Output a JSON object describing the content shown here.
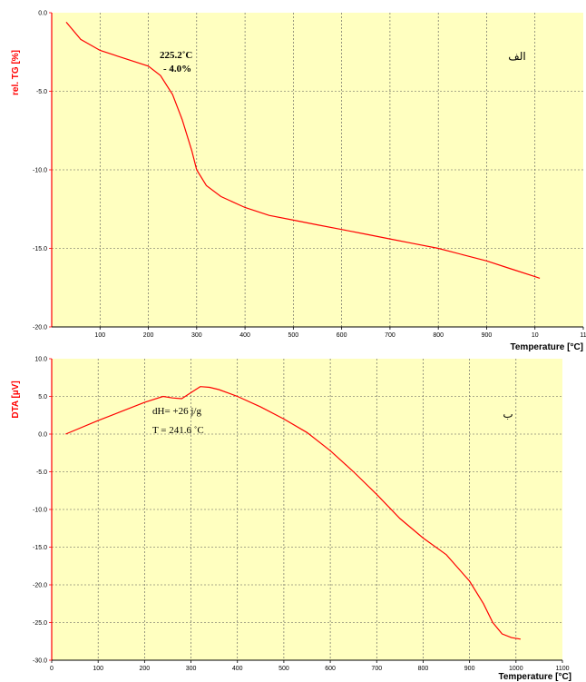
{
  "chart_data": [
    {
      "type": "line",
      "panel_label": "الف",
      "ylabel": "rel. TG  [%]",
      "xlabel": "Temperature  [°C]",
      "xlim": [
        0,
        1100
      ],
      "ylim": [
        -20,
        0
      ],
      "x_tick_labels": [
        "100",
        "200",
        "300",
        "400",
        "500",
        "600",
        "700",
        "800",
        "900",
        "10",
        "11"
      ],
      "y_tick_labels": [
        "0.0",
        "-5.0",
        "-10.0",
        "-15.0",
        "-20.0"
      ],
      "grid": true,
      "line_color": "#ff0000",
      "annotations": [
        "225.2˚C",
        "- 4.0%"
      ],
      "series": [
        {
          "x": [
            30,
            60,
            100,
            150,
            200,
            225,
            250,
            270,
            290,
            300,
            320,
            350,
            400,
            450,
            500,
            550,
            600,
            650,
            700,
            750,
            800,
            850,
            900,
            950,
            1000,
            1010
          ],
          "y": [
            -0.6,
            -1.7,
            -2.4,
            -2.9,
            -3.4,
            -4.0,
            -5.2,
            -6.8,
            -8.8,
            -10.0,
            -11.0,
            -11.7,
            -12.4,
            -12.9,
            -13.2,
            -13.5,
            -13.8,
            -14.1,
            -14.4,
            -14.7,
            -15.0,
            -15.4,
            -15.8,
            -16.3,
            -16.8,
            -16.9
          ]
        }
      ]
    },
    {
      "type": "line",
      "panel_label": "ب",
      "ylabel": "DTA  [µV]",
      "xlabel": "Temperature  [°C]",
      "xlim": [
        0,
        1100
      ],
      "ylim": [
        -30,
        10
      ],
      "x_tick_labels": [
        "0",
        "100",
        "200",
        "300",
        "400",
        "500",
        "600",
        "700",
        "800",
        "900",
        "1000",
        "1100"
      ],
      "y_tick_labels": [
        "10.0",
        "5.0",
        "0.0",
        "-5.0",
        "-10.0",
        "-15.0",
        "-20.0",
        "-25.0",
        "-30.0"
      ],
      "grid": true,
      "line_color": "#ff0000",
      "annotations": [
        "dH= +26 j/g",
        "T = 241.6 ˚C"
      ],
      "series": [
        {
          "x": [
            30,
            100,
            150,
            200,
            240,
            260,
            280,
            300,
            320,
            340,
            360,
            400,
            450,
            500,
            550,
            600,
            650,
            700,
            750,
            800,
            850,
            900,
            930,
            950,
            970,
            990,
            1010
          ],
          "y": [
            0.0,
            1.8,
            3.0,
            4.2,
            5.0,
            4.8,
            4.7,
            5.5,
            6.3,
            6.2,
            5.9,
            5.0,
            3.6,
            2.0,
            0.2,
            -2.2,
            -5.0,
            -8.0,
            -11.2,
            -13.8,
            -16.0,
            -19.5,
            -22.5,
            -25.0,
            -26.5,
            -27.0,
            -27.2
          ]
        }
      ]
    }
  ]
}
